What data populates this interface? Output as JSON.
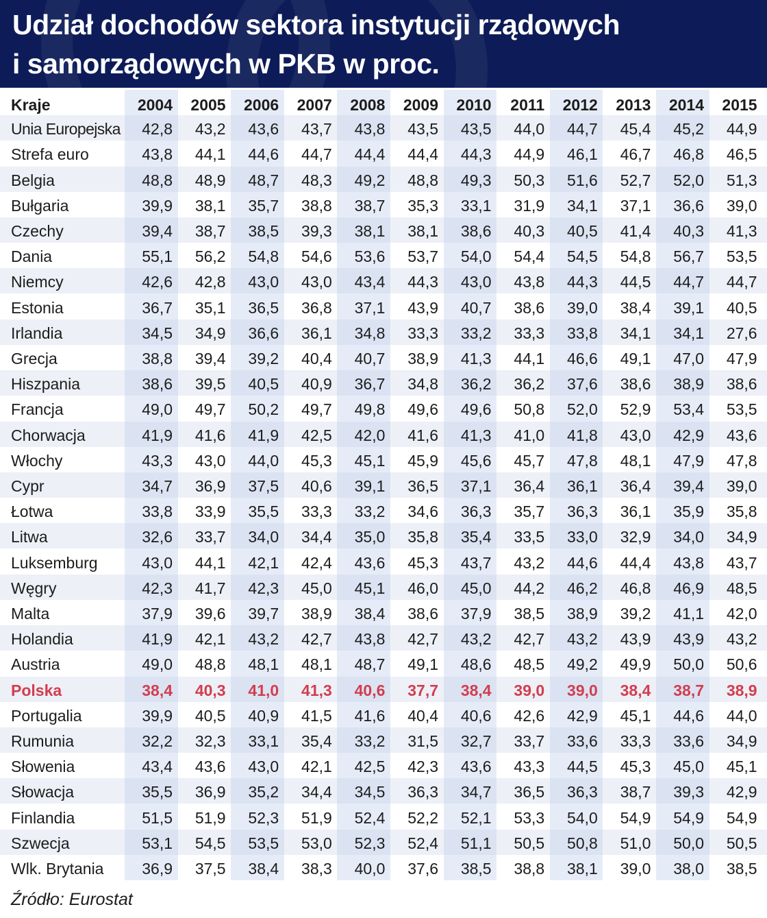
{
  "title_lines": [
    "Udział dochodów sektora instytucji rządowych",
    "i samorządowych w PKB w proc."
  ],
  "source": "Źródło: Eurostat",
  "colors": {
    "header_bg": "#0d1c58",
    "highlight": "#d23d4f",
    "stripe": "#edf0f6",
    "column_band": "#c4d2ec"
  },
  "chart_data": {
    "type": "table",
    "title": "Udział dochodów sektora instytucji rządowych i samorządowych w PKB w proc.",
    "row_header": "Kraje",
    "years": [
      "2004",
      "2005",
      "2006",
      "2007",
      "2008",
      "2009",
      "2010",
      "2011",
      "2012",
      "2013",
      "2014",
      "2015"
    ],
    "highlight_country": "Polska",
    "rows": [
      {
        "country": "Unia Europejska",
        "values": [
          "42,8",
          "43,2",
          "43,6",
          "43,7",
          "43,8",
          "43,5",
          "43,5",
          "44,0",
          "44,7",
          "45,4",
          "45,2",
          "44,9"
        ]
      },
      {
        "country": "Strefa euro",
        "values": [
          "43,8",
          "44,1",
          "44,6",
          "44,7",
          "44,4",
          "44,4",
          "44,3",
          "44,9",
          "46,1",
          "46,7",
          "46,8",
          "46,5"
        ]
      },
      {
        "country": "Belgia",
        "values": [
          "48,8",
          "48,9",
          "48,7",
          "48,3",
          "49,2",
          "48,8",
          "49,3",
          "50,3",
          "51,6",
          "52,7",
          "52,0",
          "51,3"
        ]
      },
      {
        "country": "Bułgaria",
        "values": [
          "39,9",
          "38,1",
          "35,7",
          "38,8",
          "38,7",
          "35,3",
          "33,1",
          "31,9",
          "34,1",
          "37,1",
          "36,6",
          "39,0"
        ]
      },
      {
        "country": "Czechy",
        "values": [
          "39,4",
          "38,7",
          "38,5",
          "39,3",
          "38,1",
          "38,1",
          "38,6",
          "40,3",
          "40,5",
          "41,4",
          "40,3",
          "41,3"
        ]
      },
      {
        "country": "Dania",
        "values": [
          "55,1",
          "56,2",
          "54,8",
          "54,6",
          "53,6",
          "53,7",
          "54,0",
          "54,4",
          "54,5",
          "54,8",
          "56,7",
          "53,5"
        ]
      },
      {
        "country": "Niemcy",
        "values": [
          "42,6",
          "42,8",
          "43,0",
          "43,0",
          "43,4",
          "44,3",
          "43,0",
          "43,8",
          "44,3",
          "44,5",
          "44,7",
          "44,7"
        ]
      },
      {
        "country": "Estonia",
        "values": [
          "36,7",
          "35,1",
          "36,5",
          "36,8",
          "37,1",
          "43,9",
          "40,7",
          "38,6",
          "39,0",
          "38,4",
          "39,1",
          "40,5"
        ]
      },
      {
        "country": "Irlandia",
        "values": [
          "34,5",
          "34,9",
          "36,6",
          "36,1",
          "34,8",
          "33,3",
          "33,2",
          "33,3",
          "33,8",
          "34,1",
          "34,1",
          "27,6"
        ]
      },
      {
        "country": "Grecja",
        "values": [
          "38,8",
          "39,4",
          "39,2",
          "40,4",
          "40,7",
          "38,9",
          "41,3",
          "44,1",
          "46,6",
          "49,1",
          "47,0",
          "47,9"
        ]
      },
      {
        "country": "Hiszpania",
        "values": [
          "38,6",
          "39,5",
          "40,5",
          "40,9",
          "36,7",
          "34,8",
          "36,2",
          "36,2",
          "37,6",
          "38,6",
          "38,9",
          "38,6"
        ]
      },
      {
        "country": "Francja",
        "values": [
          "49,0",
          "49,7",
          "50,2",
          "49,7",
          "49,8",
          "49,6",
          "49,6",
          "50,8",
          "52,0",
          "52,9",
          "53,4",
          "53,5"
        ]
      },
      {
        "country": "Chorwacja",
        "values": [
          "41,9",
          "41,6",
          "41,9",
          "42,5",
          "42,0",
          "41,6",
          "41,3",
          "41,0",
          "41,8",
          "43,0",
          "42,9",
          "43,6"
        ]
      },
      {
        "country": "Włochy",
        "values": [
          "43,3",
          "43,0",
          "44,0",
          "45,3",
          "45,1",
          "45,9",
          "45,6",
          "45,7",
          "47,8",
          "48,1",
          "47,9",
          "47,8"
        ]
      },
      {
        "country": "Cypr",
        "values": [
          "34,7",
          "36,9",
          "37,5",
          "40,6",
          "39,1",
          "36,5",
          "37,1",
          "36,4",
          "36,1",
          "36,4",
          "39,4",
          "39,0"
        ]
      },
      {
        "country": "Łotwa",
        "values": [
          "33,8",
          "33,9",
          "35,5",
          "33,3",
          "33,2",
          "34,6",
          "36,3",
          "35,7",
          "36,3",
          "36,1",
          "35,9",
          "35,8"
        ]
      },
      {
        "country": "Litwa",
        "values": [
          "32,6",
          "33,7",
          "34,0",
          "34,4",
          "35,0",
          "35,8",
          "35,4",
          "33,5",
          "33,0",
          "32,9",
          "34,0",
          "34,9"
        ]
      },
      {
        "country": "Luksemburg",
        "values": [
          "43,0",
          "44,1",
          "42,1",
          "42,4",
          "43,6",
          "45,3",
          "43,7",
          "43,2",
          "44,6",
          "44,4",
          "43,8",
          "43,7"
        ]
      },
      {
        "country": "Węgry",
        "values": [
          "42,3",
          "41,7",
          "42,3",
          "45,0",
          "45,1",
          "46,0",
          "45,0",
          "44,2",
          "46,2",
          "46,8",
          "46,9",
          "48,5"
        ]
      },
      {
        "country": "Malta",
        "values": [
          "37,9",
          "39,6",
          "39,7",
          "38,9",
          "38,4",
          "38,6",
          "37,9",
          "38,5",
          "38,9",
          "39,2",
          "41,1",
          "42,0"
        ]
      },
      {
        "country": "Holandia",
        "values": [
          "41,9",
          "42,1",
          "43,2",
          "42,7",
          "43,8",
          "42,7",
          "43,2",
          "42,7",
          "43,2",
          "43,9",
          "43,9",
          "43,2"
        ]
      },
      {
        "country": "Austria",
        "values": [
          "49,0",
          "48,8",
          "48,1",
          "48,1",
          "48,7",
          "49,1",
          "48,6",
          "48,5",
          "49,2",
          "49,9",
          "50,0",
          "50,6"
        ]
      },
      {
        "country": "Polska",
        "values": [
          "38,4",
          "40,3",
          "41,0",
          "41,3",
          "40,6",
          "37,7",
          "38,4",
          "39,0",
          "39,0",
          "38,4",
          "38,7",
          "38,9"
        ]
      },
      {
        "country": "Portugalia",
        "values": [
          "39,9",
          "40,5",
          "40,9",
          "41,5",
          "41,6",
          "40,4",
          "40,6",
          "42,6",
          "42,9",
          "45,1",
          "44,6",
          "44,0"
        ]
      },
      {
        "country": "Rumunia",
        "values": [
          "32,2",
          "32,3",
          "33,1",
          "35,4",
          "33,2",
          "31,5",
          "32,7",
          "33,7",
          "33,6",
          "33,3",
          "33,6",
          "34,9"
        ]
      },
      {
        "country": "Słowenia",
        "values": [
          "43,4",
          "43,6",
          "43,0",
          "42,1",
          "42,5",
          "42,3",
          "43,6",
          "43,3",
          "44,5",
          "45,3",
          "45,0",
          "45,1"
        ]
      },
      {
        "country": "Słowacja",
        "values": [
          "35,5",
          "36,9",
          "35,2",
          "34,4",
          "34,5",
          "36,3",
          "34,7",
          "36,5",
          "36,3",
          "38,7",
          "39,3",
          "42,9"
        ]
      },
      {
        "country": "Finlandia",
        "values": [
          "51,5",
          "51,9",
          "52,3",
          "51,9",
          "52,4",
          "52,2",
          "52,1",
          "53,3",
          "54,0",
          "54,9",
          "54,9",
          "54,9"
        ]
      },
      {
        "country": "Szwecja",
        "values": [
          "53,1",
          "54,5",
          "53,5",
          "53,0",
          "52,3",
          "52,4",
          "51,1",
          "50,5",
          "50,8",
          "51,0",
          "50,0",
          "50,5"
        ]
      },
      {
        "country": "Wlk. Brytania",
        "values": [
          "36,9",
          "37,5",
          "38,4",
          "38,3",
          "40,0",
          "37,6",
          "38,5",
          "38,8",
          "38,1",
          "39,0",
          "38,0",
          "38,5"
        ]
      }
    ]
  }
}
